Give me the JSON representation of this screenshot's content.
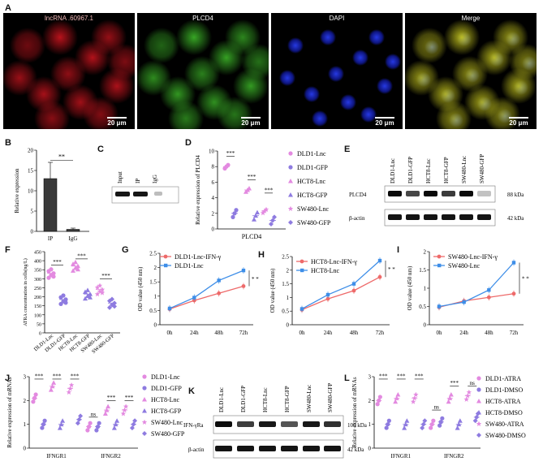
{
  "panel_labels": {
    "A": "A",
    "B": "B",
    "C": "C",
    "D": "D",
    "E": "E",
    "F": "F",
    "G": "G",
    "H": "H",
    "I": "I",
    "J": "J",
    "K": "K",
    "L": "L"
  },
  "micro": [
    {
      "title": "lncRNA .60967.1",
      "scale": "20 μm",
      "color": "#c0121a"
    },
    {
      "title": "PLCD4",
      "scale": "20 μm",
      "color": "#2e9a1e"
    },
    {
      "title": "DAPI",
      "scale": "20 μm",
      "color": "#1a2ad0"
    },
    {
      "title": "Merge",
      "scale": "20 μm",
      "color": "#9a9a10"
    }
  ],
  "blot_C": {
    "lanes": [
      "Input",
      "IP",
      "IgG"
    ]
  },
  "blot_E": {
    "lanes": [
      "DLD1-Lnc",
      "DLD1-GFP",
      "HCT8-Lnc",
      "HCT8-GFP",
      "SW480-Lnc",
      "SW480-GFP"
    ],
    "rows": [
      "PLCD4",
      "β-actin"
    ],
    "sizes": [
      "88 kDa",
      "42 kDa"
    ]
  },
  "blot_K": {
    "lanes": [
      "DLD1-Lnc",
      "DLD1-GFP",
      "HCT8-Lnc",
      "HCT8-GFP",
      "SW480-Lnc",
      "SW480-GFP"
    ],
    "rows": [
      "IFN-γRa",
      "β-actin"
    ],
    "sizes": [
      "100 kDa",
      "42 kDa"
    ]
  },
  "legend_D": [
    "DLD1-Lnc",
    "DLD1-GFP",
    "HCT8-Lnc",
    "HCT8-GFP",
    "SW480-Lnc",
    "SW480-GFP"
  ],
  "legend_J": [
    "DLD1-Lnc",
    "DLD1-GFP",
    "HCT8-Lnc",
    "HCT8-GFP",
    "SW480-Lnc",
    "SW480-GFP"
  ],
  "legend_L": [
    "DLD1-ATRA",
    "DLD1-DMSO",
    "HCT8-ATRA",
    "HCT8-DMSO",
    "SW480-ATRA",
    "SW480-DMSO"
  ],
  "colors": {
    "pink": "#e38ae0",
    "violet": "#8e7be0",
    "red": "#ee6a6a",
    "blue": "#3e8ee8",
    "bar": "#3a3a3a"
  },
  "chart_data": [
    {
      "panel": "B",
      "type": "bar",
      "categories": [
        "IP",
        "IgG"
      ],
      "values": [
        13,
        0.5
      ],
      "errors": [
        4,
        0.3
      ],
      "ylabel": "Relative expression",
      "ylim": [
        0,
        20
      ],
      "yticks": [
        0,
        5,
        10,
        15,
        20
      ],
      "annotation": "**"
    },
    {
      "panel": "D",
      "type": "scatter",
      "categories": [
        "PLCD4"
      ],
      "series_means": [
        8.0,
        2.0,
        5.0,
        1.7,
        2.3,
        1.1
      ],
      "ylabel": "Relative expression of PLCD4",
      "ylim": [
        0,
        10
      ],
      "yticks": [
        0,
        2,
        4,
        6,
        8,
        10
      ],
      "annotations": [
        "***",
        "***",
        "***"
      ]
    },
    {
      "panel": "F",
      "type": "scatter",
      "categories": [
        "DLD1-Lnc",
        "DLD1-GFP",
        "HCT8-Lnc",
        "HCT8-GFP",
        "SW480-Lnc",
        "SW480-GFP"
      ],
      "values": [
        330,
        185,
        370,
        215,
        240,
        165
      ],
      "ylabel": "ATRA concentration in cells(ng/L)",
      "ylim": [
        0,
        450
      ],
      "yticks": [
        0,
        50,
        100,
        150,
        200,
        250,
        300,
        350,
        400,
        450
      ],
      "annotations": [
        "***",
        "***",
        "***"
      ]
    },
    {
      "panel": "G",
      "type": "line",
      "x": [
        "0h",
        "24h",
        "48h",
        "72h"
      ],
      "series": [
        {
          "name": "DLD1-Lnc-IFN-γ",
          "values": [
            0.55,
            0.85,
            1.1,
            1.35
          ]
        },
        {
          "name": "DLD1-Lnc",
          "values": [
            0.57,
            0.95,
            1.55,
            1.9
          ]
        }
      ],
      "ylabel": "OD value (450 nm)",
      "ylim": [
        0,
        2.5
      ],
      "yticks": [
        0.0,
        0.5,
        1.0,
        1.5,
        2.0,
        2.5
      ],
      "annotation": "* *"
    },
    {
      "panel": "H",
      "type": "line",
      "x": [
        "0h",
        "24h",
        "48h",
        "72h"
      ],
      "series": [
        {
          "name": "HCT8-Lnc-IFN-γ",
          "values": [
            0.55,
            0.95,
            1.25,
            1.75
          ]
        },
        {
          "name": "HCT8-Lnc",
          "values": [
            0.58,
            1.1,
            1.5,
            2.35
          ]
        }
      ],
      "ylabel": "OD value (450 nm)",
      "ylim": [
        0,
        2.5
      ],
      "yticks": [
        0.0,
        0.5,
        1.0,
        1.5,
        2.0,
        2.5
      ],
      "annotation": "* *"
    },
    {
      "panel": "I",
      "type": "line",
      "x": [
        "0h",
        "24h",
        "48h",
        "72h"
      ],
      "series": [
        {
          "name": "SW480-Lnc-IFN-γ",
          "values": [
            0.48,
            0.65,
            0.75,
            0.85
          ]
        },
        {
          "name": "SW480-Lnc",
          "values": [
            0.5,
            0.62,
            0.95,
            1.7
          ]
        }
      ],
      "ylabel": "OD value (450 nm)",
      "ylim": [
        0,
        2.0
      ],
      "yticks": [
        0.0,
        0.5,
        1.0,
        1.5,
        2.0
      ],
      "annotation": "* *"
    },
    {
      "panel": "J",
      "type": "scatter",
      "categories": [
        "IFNGR1",
        "IFNGR2"
      ],
      "series": [
        {
          "name": "DLD1-Lnc",
          "values": [
            2.1,
            0.9
          ]
        },
        {
          "name": "DLD1-GFP",
          "values": [
            1.0,
            0.9
          ]
        },
        {
          "name": "HCT8-Lnc",
          "values": [
            2.6,
            1.6
          ]
        },
        {
          "name": "HCT8-GFP",
          "values": [
            1.0,
            1.0
          ]
        },
        {
          "name": "SW480-Lnc",
          "values": [
            2.5,
            1.6
          ]
        },
        {
          "name": "SW480-GFP",
          "values": [
            1.2,
            1.0
          ]
        }
      ],
      "ylabel": "Relative expression of mRNAs",
      "ylim": [
        0,
        3
      ],
      "yticks": [
        0,
        1,
        2,
        3
      ],
      "annotations": [
        "***",
        "***",
        "***",
        "ns",
        "***",
        "***"
      ]
    },
    {
      "panel": "L",
      "type": "scatter",
      "categories": [
        "IFNGR1",
        "IFNGR2"
      ],
      "series": [
        {
          "name": "DLD1-ATRA",
          "values": [
            2.0,
            1.0
          ]
        },
        {
          "name": "DLD1-DMSO",
          "values": [
            1.0,
            1.1
          ]
        },
        {
          "name": "HCT8-ATRA",
          "values": [
            2.1,
            2.1
          ]
        },
        {
          "name": "HCT8-DMSO",
          "values": [
            1.0,
            1.0
          ]
        },
        {
          "name": "SW480-ATRA",
          "values": [
            2.1,
            2.2
          ]
        },
        {
          "name": "SW480-DMSO",
          "values": [
            1.0,
            1.3
          ]
        }
      ],
      "ylabel": "Relative expression of mRNAs",
      "ylim": [
        0,
        3
      ],
      "yticks": [
        0,
        1,
        2,
        3
      ],
      "annotations": [
        "***",
        "***",
        "***",
        "ns",
        "***",
        "ns"
      ]
    }
  ]
}
